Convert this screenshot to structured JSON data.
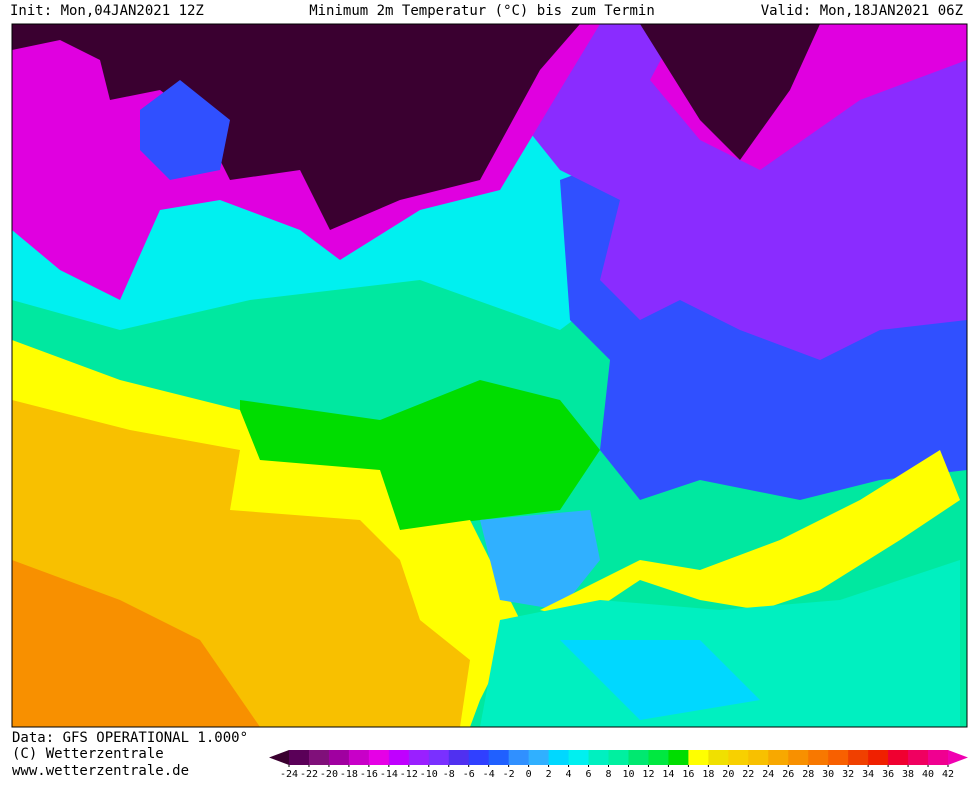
{
  "header": {
    "init": "Init: Mon,04JAN2021 12Z",
    "title": "Minimum 2m Temperatur (°C) bis zum Termin",
    "valid": "Valid: Mon,18JAN2021 06Z"
  },
  "footer": {
    "data": "Data: GFS OPERATIONAL 1.000°",
    "copyright": "(C) Wetterzentrale",
    "url": "www.wetterzentrale.de"
  },
  "colorbar": {
    "levels": [
      -24,
      -22,
      -20,
      -18,
      -16,
      -14,
      -12,
      -10,
      -8,
      -6,
      -4,
      -2,
      0,
      2,
      4,
      6,
      8,
      10,
      12,
      14,
      16,
      18,
      20,
      22,
      24,
      26,
      28,
      30,
      32,
      34,
      36,
      38,
      40,
      42
    ],
    "colors": [
      "#3a0030",
      "#5a0058",
      "#80107a",
      "#a000a0",
      "#c800c8",
      "#e600e6",
      "#c000ff",
      "#9a20ff",
      "#7a30ff",
      "#5030f0",
      "#3040ff",
      "#2060ff",
      "#3090ff",
      "#30b0ff",
      "#00d8ff",
      "#00f0f0",
      "#00f0c0",
      "#00f0a0",
      "#00e870",
      "#00e840",
      "#00dd00",
      "#ffff00",
      "#f0e000",
      "#f8d000",
      "#f8c000",
      "#f8a800",
      "#f89000",
      "#f87800",
      "#f86000",
      "#f04000",
      "#f02000",
      "#f00030",
      "#f00060",
      "#f00090",
      "#f000b0",
      "#f000d0",
      "#f080f0"
    ]
  }
}
